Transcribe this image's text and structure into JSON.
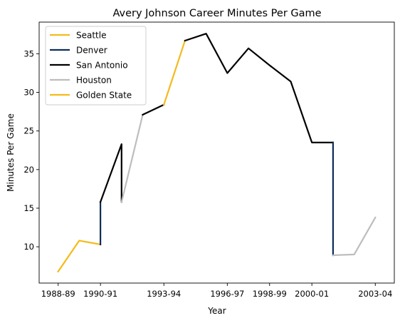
{
  "chart_data": {
    "type": "line",
    "title": "Avery Johnson Career Minutes Per Game",
    "xlabel": "Year",
    "ylabel": "Minutes Per Game",
    "x_ticks": [
      {
        "value": 0,
        "label": "1988-89"
      },
      {
        "value": 2,
        "label": "1990-91"
      },
      {
        "value": 5,
        "label": "1993-94"
      },
      {
        "value": 8,
        "label": "1996-97"
      },
      {
        "value": 10,
        "label": "1998-99"
      },
      {
        "value": 12,
        "label": "2000-01"
      },
      {
        "value": 15,
        "label": "2003-04"
      }
    ],
    "y_ticks": [
      10,
      15,
      20,
      25,
      30,
      35
    ],
    "xlim": [
      -0.9,
      15.9
    ],
    "ylim": [
      5.3,
      39.1
    ],
    "grid": false,
    "legend_position": "top-left",
    "series": [
      {
        "name": "Seattle",
        "color": "#F5BA1B",
        "points": [
          [
            0,
            6.8
          ],
          [
            1,
            10.8
          ],
          [
            2,
            10.3
          ]
        ]
      },
      {
        "name": "Denver",
        "color": "#0D2E5A",
        "points": [
          [
            2,
            10.3
          ],
          [
            2,
            15.8
          ]
        ]
      },
      {
        "name": "San Antonio",
        "color": "#000000",
        "points": [
          [
            2,
            15.8
          ],
          [
            3,
            23.3
          ],
          [
            3,
            15.8
          ]
        ]
      },
      {
        "name": "Houston",
        "color": "#BDBDBD",
        "points": [
          [
            3,
            15.8
          ],
          [
            4,
            27.1
          ]
        ]
      },
      {
        "name": "San Antonio",
        "color": "#000000",
        "points": [
          [
            4,
            27.1
          ],
          [
            5,
            28.4
          ]
        ]
      },
      {
        "name": "Golden State",
        "color": "#F5BA1B",
        "points": [
          [
            5,
            28.4
          ],
          [
            6,
            36.7
          ]
        ]
      },
      {
        "name": "San Antonio",
        "color": "#000000",
        "points": [
          [
            6,
            36.7
          ],
          [
            7,
            37.6
          ],
          [
            8,
            32.5
          ],
          [
            9,
            35.7
          ],
          [
            10,
            33.5
          ],
          [
            11,
            31.4
          ],
          [
            12,
            23.5
          ],
          [
            13,
            23.5
          ]
        ]
      },
      {
        "name": "Denver",
        "color": "#0D2E5A",
        "points": [
          [
            13,
            23.5
          ],
          [
            13,
            8.9
          ]
        ]
      },
      {
        "name": "Houston",
        "color": "#BDBDBD",
        "points": [
          [
            13,
            8.9
          ],
          [
            14,
            9.0
          ],
          [
            15,
            13.8
          ]
        ]
      }
    ],
    "legend": [
      {
        "label": "Seattle",
        "color": "#F5BA1B"
      },
      {
        "label": "Denver",
        "color": "#0D2E5A"
      },
      {
        "label": "San Antonio",
        "color": "#000000"
      },
      {
        "label": "Houston",
        "color": "#BDBDBD"
      },
      {
        "label": "Golden State",
        "color": "#F5BA1B"
      }
    ]
  }
}
